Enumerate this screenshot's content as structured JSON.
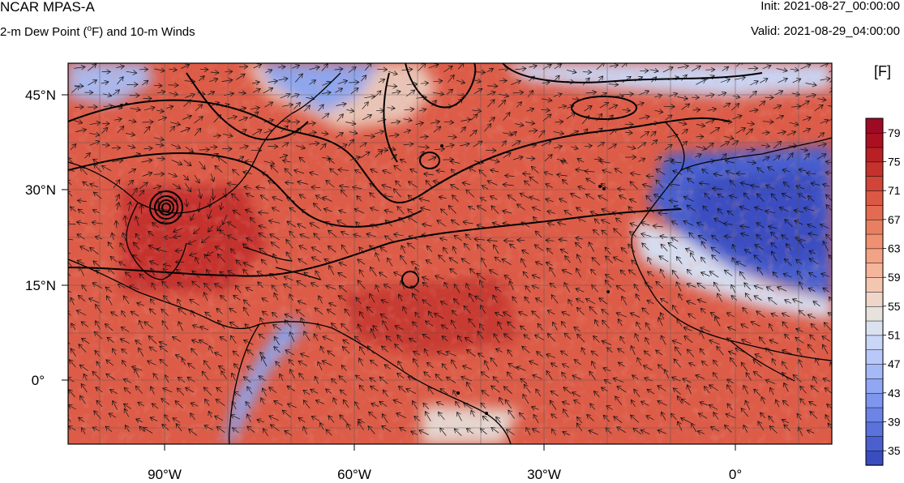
{
  "header": {
    "model_title": "NCAR MPAS-A",
    "field_title_pre": "2-m Dew Point (",
    "field_title_deg": "o",
    "field_title_post": "F) and 10-m Winds",
    "init_label": "Init: 2021-08-27_00:00:00",
    "valid_label": "Valid: 2021-08-29_04:00:00"
  },
  "map": {
    "lon_ticks": [
      "90°W",
      "60°W",
      "30°W",
      "0°"
    ],
    "lat_ticks": [
      "45°N",
      "30°N",
      "15°N",
      "0°"
    ],
    "colors": {
      "frame": "#000000",
      "grid": "#555555",
      "coast": "#000000",
      "contour": "#000000"
    }
  },
  "colorbar": {
    "units": "[F]",
    "labels": [
      "79",
      "75",
      "71",
      "67",
      "63",
      "59",
      "55",
      "51",
      "47",
      "43",
      "39",
      "35"
    ],
    "min": 33,
    "max": 81,
    "colors": [
      "#3a4dc0",
      "#4a60cf",
      "#5a72dc",
      "#6c84e6",
      "#7e96ee",
      "#91a7f3",
      "#a5b9f7",
      "#b8c8f8",
      "#cad6f6",
      "#dbe1f1",
      "#e7e2de",
      "#efd6c8",
      "#f4c6b0",
      "#f5b59a",
      "#f3a385",
      "#ef9171",
      "#e97f61",
      "#e26b51",
      "#da5844",
      "#d04538",
      "#c5322e",
      "#b82026",
      "#aa1020",
      "#9e0a24"
    ]
  }
}
